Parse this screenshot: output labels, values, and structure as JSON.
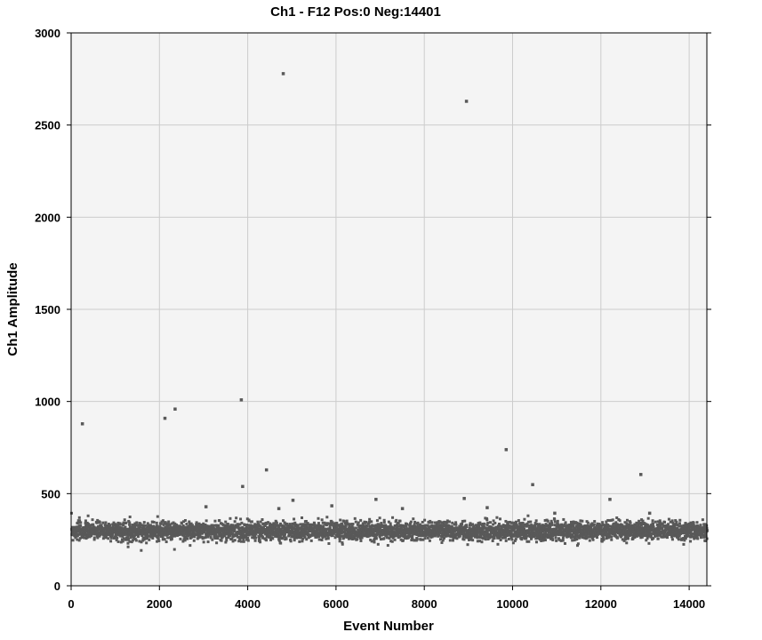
{
  "chart_data": {
    "type": "scatter",
    "title": "Ch1 - F12 Pos:0 Neg:14401",
    "xlabel": "Event Number",
    "ylabel": "Ch1 Amplitude",
    "xlim": [
      0,
      14401
    ],
    "ylim": [
      0,
      3000
    ],
    "x_ticks": [
      0,
      2000,
      4000,
      6000,
      8000,
      10000,
      12000,
      14000
    ],
    "x_tick_labels": [
      "0",
      "2000",
      "4000",
      "6000",
      "8000",
      "10000",
      "12000",
      "14000"
    ],
    "y_ticks": [
      0,
      500,
      1000,
      1500,
      2000,
      2500,
      3000
    ],
    "y_tick_labels": [
      "0",
      "500",
      "1000",
      "1500",
      "2000",
      "2500",
      "3000"
    ],
    "grid": true,
    "background": "#f4f4f4",
    "grid_color": "#cccccc",
    "point_color": "#595959",
    "series": [
      {
        "band": {
          "count": 14401,
          "center": 300,
          "spread": 45,
          "x_range": [
            0,
            14401
          ]
        },
        "points": [
          [
            250,
            880
          ],
          [
            2120,
            910
          ],
          [
            2350,
            960
          ],
          [
            3050,
            430
          ],
          [
            3850,
            1010
          ],
          [
            3880,
            540
          ],
          [
            4420,
            630
          ],
          [
            4700,
            420
          ],
          [
            4800,
            2780
          ],
          [
            5020,
            465
          ],
          [
            5900,
            435
          ],
          [
            6900,
            470
          ],
          [
            7500,
            420
          ],
          [
            8900,
            475
          ],
          [
            8950,
            2630
          ],
          [
            9420,
            425
          ],
          [
            9850,
            740
          ],
          [
            10450,
            550
          ],
          [
            10950,
            395
          ],
          [
            12200,
            470
          ],
          [
            12900,
            605
          ],
          [
            13100,
            395
          ]
        ]
      }
    ]
  }
}
